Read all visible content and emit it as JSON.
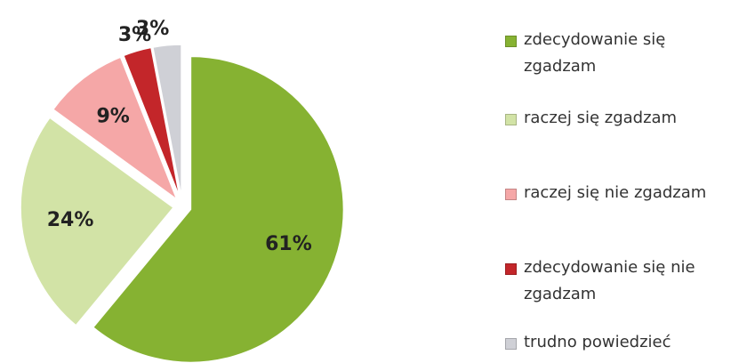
{
  "chart_data": {
    "type": "pie",
    "categories": [
      "zdecydowanie się zgadzam",
      "raczej się zgadzam",
      "raczej się nie zgadzam",
      "zdecydowanie się nie zgadzam",
      "trudno powiedzieć"
    ],
    "values": [
      61,
      24,
      9,
      3,
      3
    ],
    "value_labels": [
      "61%",
      "24%",
      "9%",
      "3%",
      "3%"
    ],
    "colors": [
      "#86b232",
      "#d2e3a6",
      "#f5a7a7",
      "#c3262a",
      "#cfd0d6"
    ]
  }
}
